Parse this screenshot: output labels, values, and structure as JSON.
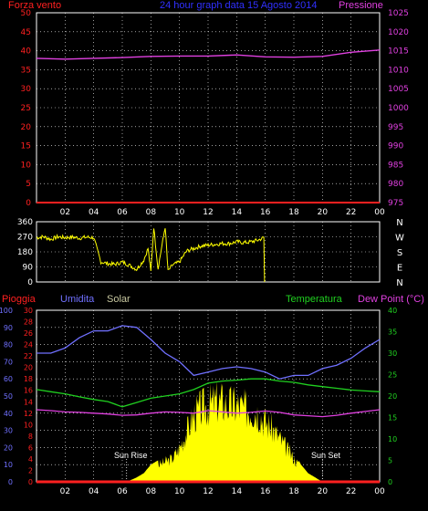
{
  "colors": {
    "background": "#000000",
    "frame": "#ffffff",
    "grid": "#ffffff",
    "wind": "#ff2020",
    "pressure": "#e040e0",
    "title": "#3030ff",
    "direction": "#ffff00",
    "rain": "#ff2020",
    "humidity": "#7070ff",
    "solar": "#c8c8a0",
    "temperature": "#20d020",
    "dewpoint": "#e040e0",
    "solar_fill": "#ffff00"
  },
  "chart_data": [
    {
      "type": "line",
      "title": "24 hour graph data 15 Agosto 2014",
      "left_axis_label": "Forza vento",
      "right_axis_label": "Pressione",
      "x_tick_labels": [
        "02",
        "04",
        "06",
        "08",
        "10",
        "12",
        "14",
        "16",
        "18",
        "20",
        "22",
        "00"
      ],
      "y_left_ticks": [
        0,
        5,
        10,
        15,
        20,
        25,
        30,
        35,
        40,
        45,
        50
      ],
      "y_right_ticks": [
        975,
        980,
        985,
        990,
        995,
        1000,
        1005,
        1010,
        1015,
        1020,
        1025
      ],
      "ylim_left": [
        0,
        50
      ],
      "ylim_right": [
        975,
        1025
      ],
      "grid": true,
      "series": [
        {
          "name": "Forza vento",
          "axis": "left",
          "x": [
            0,
            24
          ],
          "values": [
            0,
            0
          ]
        },
        {
          "name": "Pressione",
          "axis": "right",
          "x": [
            0,
            2,
            4,
            6,
            8,
            10,
            12,
            14,
            16,
            18,
            20,
            22,
            24
          ],
          "values": [
            1013.0,
            1012.8,
            1013.0,
            1013.2,
            1013.5,
            1013.6,
            1013.6,
            1013.9,
            1013.4,
            1013.3,
            1013.5,
            1014.6,
            1015.2
          ]
        }
      ]
    },
    {
      "type": "line",
      "y_ticks": [
        0,
        90,
        180,
        270,
        360
      ],
      "ylim": [
        0,
        360
      ],
      "right_labels": [
        "N",
        "W",
        "S",
        "E",
        "N"
      ],
      "grid": true,
      "series": [
        {
          "name": "",
          "x": [
            0,
            0.5,
            1.0,
            1.5,
            2.0,
            2.5,
            3.0,
            3.5,
            4.0,
            4.5,
            5.0,
            5.5,
            6.0,
            6.5,
            7.0,
            7.5,
            7.8,
            8.0,
            8.2,
            8.5,
            9.0,
            9.2,
            9.5,
            10.0,
            10.5,
            11.0,
            11.5,
            12.0,
            12.5,
            13.0,
            13.5,
            14.0,
            14.5,
            15.0,
            15.5,
            15.9,
            15.95
          ],
          "values": [
            265,
            270,
            255,
            270,
            265,
            268,
            262,
            268,
            265,
            120,
            110,
            105,
            120,
            100,
            75,
            130,
            200,
            60,
            330,
            80,
            330,
            65,
            100,
            120,
            185,
            200,
            215,
            220,
            225,
            230,
            230,
            240,
            235,
            240,
            250,
            265,
            0
          ]
        }
      ]
    },
    {
      "type": "area",
      "series_labels": {
        "rain": "Pioggia",
        "humidity": "Umidita",
        "solar": "Solar",
        "temperature": "Temperatura",
        "dewpoint": "Dew Point (°C)"
      },
      "x_tick_labels": [
        "02",
        "04",
        "06",
        "08",
        "10",
        "12",
        "14",
        "16",
        "18",
        "20",
        "22",
        "00"
      ],
      "axis1_ticks": [
        0,
        10,
        20,
        30,
        40,
        50,
        60,
        70,
        80,
        90,
        100
      ],
      "axis2_ticks": [
        0,
        2,
        4,
        6,
        8,
        10,
        12,
        14,
        16,
        18,
        20,
        22,
        24,
        26,
        28,
        30
      ],
      "axis_right_ticks": [
        0,
        5,
        10,
        15,
        20,
        25,
        30,
        35,
        40
      ],
      "annotations": [
        "Sun Rise",
        "Sun Set"
      ],
      "grid": true,
      "series": [
        {
          "name": "Umidita",
          "axis": "humidity_pct",
          "ylim": [
            0,
            100
          ],
          "x": [
            0,
            1,
            2,
            3,
            4,
            5,
            6,
            7,
            8,
            9,
            10,
            11,
            12,
            13,
            14,
            15,
            16,
            17,
            18,
            19,
            20,
            21,
            22,
            23,
            24
          ],
          "values": [
            75,
            75,
            78,
            84,
            88,
            88,
            91,
            90,
            83,
            75,
            70,
            62,
            64,
            66,
            67,
            66,
            64,
            60,
            62,
            62,
            66,
            68,
            72,
            78,
            83
          ]
        },
        {
          "name": "Pioggia",
          "axis": "rain_mm",
          "ylim": [
            0,
            30
          ],
          "x": [
            0,
            24
          ],
          "values": [
            0,
            0
          ]
        },
        {
          "name": "Temperatura",
          "axis": "right",
          "ylim": [
            0,
            40
          ],
          "x": [
            0,
            1,
            2,
            3,
            4,
            5,
            6,
            7,
            8,
            9,
            10,
            11,
            12,
            13,
            14,
            15,
            16,
            17,
            18,
            19,
            20,
            21,
            22,
            23,
            24
          ],
          "values": [
            21.5,
            21,
            20.5,
            19.8,
            19.2,
            18.7,
            17.5,
            18.5,
            19.5,
            20,
            20.5,
            21.5,
            23,
            23.5,
            23.7,
            24,
            24,
            23.5,
            23.2,
            22.6,
            22.2,
            21.8,
            21.4,
            21.2,
            21
          ]
        },
        {
          "name": "Dew Point (°C)",
          "axis": "right",
          "ylim": [
            0,
            40
          ],
          "x": [
            0,
            1,
            2,
            3,
            4,
            5,
            6,
            7,
            8,
            9,
            10,
            11,
            12,
            13,
            14,
            15,
            16,
            17,
            18,
            19,
            20,
            21,
            22,
            23,
            24
          ],
          "values": [
            16.8,
            16.6,
            16.3,
            16.2,
            16.0,
            15.8,
            15.5,
            15.6,
            16.0,
            16.3,
            16.2,
            16.0,
            16.6,
            16.3,
            16.0,
            16.2,
            16.5,
            16.2,
            15.6,
            15.4,
            15.2,
            15.5,
            16.0,
            16.4,
            16.8
          ]
        },
        {
          "name": "Solar",
          "axis": "right",
          "ylim": [
            0,
            40
          ],
          "x": [
            6.3,
            7,
            7.5,
            8,
            8.5,
            9,
            9.5,
            10,
            10.5,
            11,
            11.5,
            12,
            12.5,
            13,
            13.5,
            14,
            14.5,
            15,
            15.5,
            16,
            16.5,
            17,
            17.5,
            18,
            18.5,
            19,
            19.5,
            20
          ],
          "values": [
            0,
            1,
            2,
            4,
            5,
            6,
            7,
            10,
            15,
            20,
            22,
            23,
            24,
            24,
            23,
            23,
            22,
            22,
            21,
            18,
            16,
            13,
            10,
            7,
            4,
            2,
            1,
            0
          ]
        }
      ]
    }
  ]
}
